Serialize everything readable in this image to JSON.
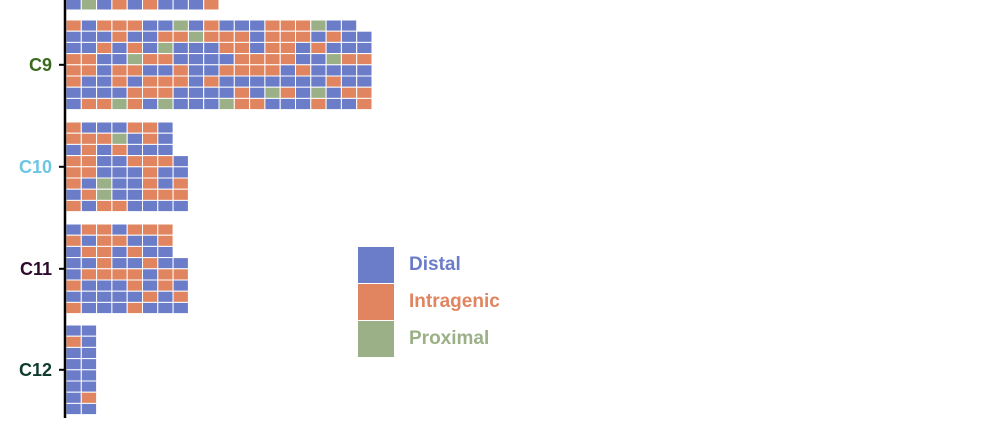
{
  "chart_data": {
    "type": "waffle",
    "title": "",
    "xlabel": "",
    "ylabel": "",
    "categories": [
      "C9",
      "C10",
      "C11",
      "C12"
    ],
    "category_colors": {
      "C9": "#3b6a1f",
      "C10": "#6cc6e3",
      "C11": "#2e0a2e",
      "C12": "#0f3b2f"
    },
    "series": [
      {
        "name": "Distal",
        "color": "#6b7cc9"
      },
      {
        "name": "Intragenic",
        "color": "#e08560"
      },
      {
        "name": "Proximal",
        "color": "#9bb087"
      }
    ],
    "counts": {
      "C9": {
        "Distal": 82,
        "Intragenic": 66,
        "Proximal": 11
      },
      "C10": {
        "Distal": 31,
        "Intragenic": 27,
        "Proximal": 3
      },
      "C11": {
        "Distal": 34,
        "Intragenic": 27,
        "Proximal": 0
      },
      "C12": {
        "Distal": 14,
        "Intragenic": 2,
        "Proximal": 0
      }
    },
    "grid": "C0DDDDIDDIDDI\nDDIDIIIDDDIDD\nIIIIIIPIIDDIDIDDIIIPIIDDD\nDDDIDDPDDDIIDIDIPDIIIDPDI\nIDIDIIPDDIIDDIDDPDDIIDDPI\nDDDDDDPIDDIIIDDIIPIDDDDI\nIDDIDIIDIIIDDDDDDPIDIIDDDD\nDIIDDIDDIDDIDIIDDPDDIDDDD\nDDDDDDDDIIIDDDDIDDD\nDIIIDIIDIIIIDIIDIID\n\nC10\nIIIIDDDIID\nDDIDIDIIDI\nDDIDIIDDDI\nIDIIPDDDDP\nDDDIDIIIID\nIDIDIIDDIDD\nIDIDIDDIDD\nIDDDDIIDID\n\nC11\nIIIIDDIIIII\nIDDIDIIDDDD\nDIDDDIDDDDI\nIDDDIIIIIII\nDIDIDDDDIID\nIDIIDDIIDID\nDDDIDDDIDDII\nDIDDDDDDDDD\n\nC12\nDID\nIDD\nDDD\nDDI\nDDD\nDDD"
  },
  "legend": {
    "items": [
      {
        "label": "Distal",
        "color": "#6b7cc9"
      },
      {
        "label": "Intragenic",
        "color": "#e08560"
      },
      {
        "label": "Proximal",
        "color": "#9bb087"
      }
    ]
  }
}
